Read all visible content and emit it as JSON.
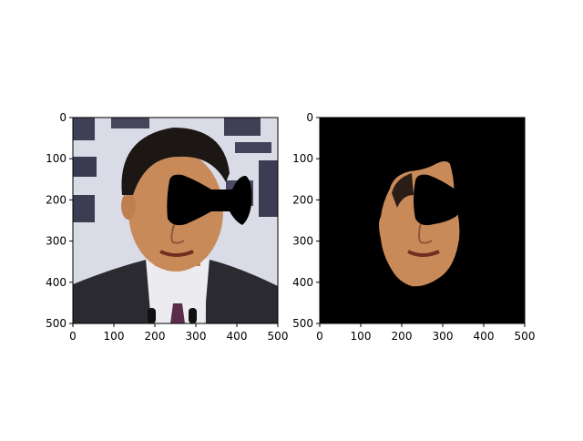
{
  "figure": {
    "background": "#ffffff"
  },
  "chart_data": [
    {
      "type": "image",
      "title": "",
      "xlabel": "",
      "ylabel": "",
      "xlim": [
        0,
        500
      ],
      "ylim": [
        500,
        0
      ],
      "xticks": [
        0,
        100,
        200,
        300,
        400,
        500
      ],
      "yticks": [
        0,
        100,
        200,
        300,
        400,
        500
      ],
      "content": "portrait photo with a black bow-shaped occlusion mask over the eyes",
      "colors": {
        "mask": "#000000",
        "skin": "#c98a5a",
        "hair": "#1c1714",
        "suit": "#2b2a2e",
        "shirt": "#e9e9ee",
        "backdrop": "#d7d9e6"
      }
    },
    {
      "type": "image",
      "title": "",
      "xlabel": "",
      "ylabel": "",
      "xlim": [
        0,
        500
      ],
      "ylim": [
        500,
        0
      ],
      "xticks": [
        0,
        100,
        200,
        300,
        400,
        500
      ],
      "yticks": [
        0,
        100,
        200,
        300,
        400,
        500
      ],
      "content": "segmented face region on black background with occluded area removed",
      "colors": {
        "background": "#000000",
        "skin": "#c98a5a"
      }
    }
  ]
}
